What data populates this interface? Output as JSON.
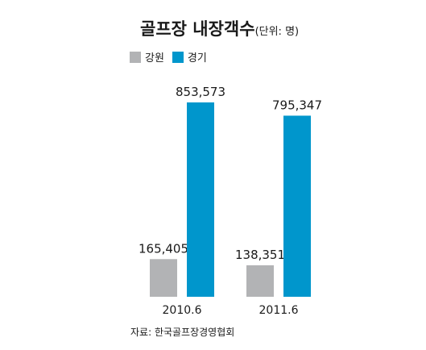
{
  "header": {
    "title": "골프장 내장객수",
    "unit": "(단위: 명)"
  },
  "source": "자료: 한국골프장경영협회",
  "chart_data": {
    "type": "bar",
    "title": "골프장 내장객수",
    "unit_label": "(단위: 명)",
    "categories": [
      "2010.6",
      "2011.6"
    ],
    "series": [
      {
        "name": "강원",
        "color": "#b2b3b5",
        "values": [
          165405,
          138351
        ],
        "labels": [
          "165,405",
          "138,351"
        ]
      },
      {
        "name": "경기",
        "color": "#0096cc",
        "values": [
          853573,
          795347
        ],
        "labels": [
          "853,573",
          "795,347"
        ]
      }
    ],
    "ylim": [
      0,
      853573
    ],
    "grid": false,
    "legend_position": "top-left"
  }
}
